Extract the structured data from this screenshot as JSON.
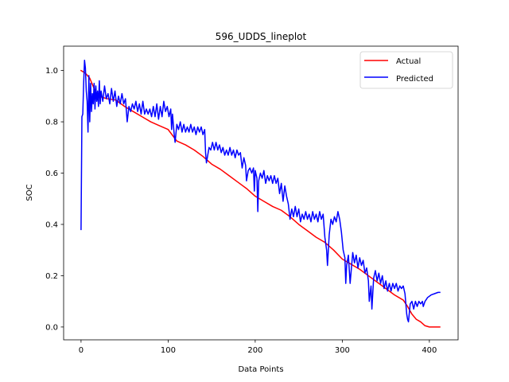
{
  "chart_data": {
    "type": "line",
    "title": "596_UDDS_lineplot",
    "xlabel": "Data Points",
    "ylabel": "SOC",
    "xlim": [
      -20,
      433
    ],
    "ylim": [
      -0.05,
      1.095
    ],
    "xticks": [
      0,
      100,
      200,
      300,
      400
    ],
    "yticks": [
      0.0,
      0.2,
      0.4,
      0.6,
      0.8,
      1.0
    ],
    "xtick_labels": [
      "0",
      "100",
      "200",
      "300",
      "400"
    ],
    "ytick_labels": [
      "0.0",
      "0.2",
      "0.4",
      "0.6",
      "0.8",
      "1.0"
    ],
    "grid": false,
    "legend": {
      "position": "top-right"
    },
    "series": [
      {
        "name": "Actual",
        "color": "#ff0000",
        "points": [
          [
            0,
            1.0
          ],
          [
            5,
            0.99
          ],
          [
            10,
            0.97
          ],
          [
            15,
            0.93
          ],
          [
            20,
            0.9
          ],
          [
            30,
            0.89
          ],
          [
            40,
            0.885
          ],
          [
            50,
            0.86
          ],
          [
            60,
            0.84
          ],
          [
            70,
            0.82
          ],
          [
            80,
            0.8
          ],
          [
            90,
            0.785
          ],
          [
            100,
            0.77
          ],
          [
            110,
            0.725
          ],
          [
            120,
            0.71
          ],
          [
            130,
            0.69
          ],
          [
            140,
            0.665
          ],
          [
            150,
            0.635
          ],
          [
            160,
            0.615
          ],
          [
            170,
            0.59
          ],
          [
            180,
            0.565
          ],
          [
            190,
            0.54
          ],
          [
            200,
            0.51
          ],
          [
            210,
            0.49
          ],
          [
            220,
            0.47
          ],
          [
            230,
            0.455
          ],
          [
            240,
            0.43
          ],
          [
            250,
            0.4
          ],
          [
            260,
            0.375
          ],
          [
            270,
            0.35
          ],
          [
            280,
            0.33
          ],
          [
            290,
            0.3
          ],
          [
            300,
            0.265
          ],
          [
            310,
            0.245
          ],
          [
            320,
            0.225
          ],
          [
            330,
            0.2
          ],
          [
            340,
            0.175
          ],
          [
            350,
            0.15
          ],
          [
            360,
            0.125
          ],
          [
            370,
            0.105
          ],
          [
            375,
            0.08
          ],
          [
            380,
            0.05
          ],
          [
            385,
            0.03
          ],
          [
            390,
            0.02
          ],
          [
            395,
            0.005
          ],
          [
            400,
            0.0
          ],
          [
            412,
            0.0
          ]
        ]
      },
      {
        "name": "Predicted",
        "color": "#0000ff",
        "points": [
          [
            0,
            0.38
          ],
          [
            1,
            0.82
          ],
          [
            2,
            0.83
          ],
          [
            3,
            0.95
          ],
          [
            4,
            1.04
          ],
          [
            5,
            1.01
          ],
          [
            6,
            0.92
          ],
          [
            7,
            0.88
          ],
          [
            8,
            0.76
          ],
          [
            9,
            0.98
          ],
          [
            10,
            0.8
          ],
          [
            11,
            0.95
          ],
          [
            12,
            0.84
          ],
          [
            13,
            0.91
          ],
          [
            14,
            0.87
          ],
          [
            15,
            0.95
          ],
          [
            16,
            0.85
          ],
          [
            17,
            0.94
          ],
          [
            18,
            0.88
          ],
          [
            19,
            0.92
          ],
          [
            20,
            0.86
          ],
          [
            21,
            0.96
          ],
          [
            22,
            0.87
          ],
          [
            23,
            0.92
          ],
          [
            25,
            0.88
          ],
          [
            27,
            0.94
          ],
          [
            29,
            0.89
          ],
          [
            31,
            0.91
          ],
          [
            33,
            0.87
          ],
          [
            35,
            0.93
          ],
          [
            37,
            0.88
          ],
          [
            39,
            0.92
          ],
          [
            41,
            0.86
          ],
          [
            43,
            0.9
          ],
          [
            45,
            0.87
          ],
          [
            47,
            0.91
          ],
          [
            49,
            0.87
          ],
          [
            51,
            0.89
          ],
          [
            53,
            0.8
          ],
          [
            55,
            0.86
          ],
          [
            57,
            0.84
          ],
          [
            59,
            0.87
          ],
          [
            61,
            0.85
          ],
          [
            63,
            0.88
          ],
          [
            65,
            0.84
          ],
          [
            67,
            0.87
          ],
          [
            69,
            0.83
          ],
          [
            71,
            0.88
          ],
          [
            73,
            0.83
          ],
          [
            75,
            0.85
          ],
          [
            77,
            0.83
          ],
          [
            79,
            0.85
          ],
          [
            81,
            0.82
          ],
          [
            83,
            0.86
          ],
          [
            85,
            0.82
          ],
          [
            87,
            0.87
          ],
          [
            89,
            0.81
          ],
          [
            91,
            0.86
          ],
          [
            93,
            0.82
          ],
          [
            95,
            0.88
          ],
          [
            97,
            0.84
          ],
          [
            99,
            0.86
          ],
          [
            101,
            0.82
          ],
          [
            103,
            0.85
          ],
          [
            104,
            0.77
          ],
          [
            105,
            0.83
          ],
          [
            107,
            0.75
          ],
          [
            108,
            0.72
          ],
          [
            110,
            0.79
          ],
          [
            112,
            0.77
          ],
          [
            114,
            0.8
          ],
          [
            116,
            0.76
          ],
          [
            118,
            0.79
          ],
          [
            120,
            0.76
          ],
          [
            122,
            0.78
          ],
          [
            124,
            0.76
          ],
          [
            126,
            0.79
          ],
          [
            128,
            0.76
          ],
          [
            130,
            0.78
          ],
          [
            132,
            0.75
          ],
          [
            134,
            0.78
          ],
          [
            136,
            0.76
          ],
          [
            138,
            0.78
          ],
          [
            140,
            0.75
          ],
          [
            142,
            0.77
          ],
          [
            143,
            0.68
          ],
          [
            144,
            0.64
          ],
          [
            145,
            0.66
          ],
          [
            147,
            0.7
          ],
          [
            149,
            0.69
          ],
          [
            151,
            0.72
          ],
          [
            153,
            0.69
          ],
          [
            155,
            0.72
          ],
          [
            157,
            0.69
          ],
          [
            159,
            0.71
          ],
          [
            161,
            0.68
          ],
          [
            163,
            0.7
          ],
          [
            165,
            0.67
          ],
          [
            167,
            0.69
          ],
          [
            169,
            0.67
          ],
          [
            171,
            0.7
          ],
          [
            173,
            0.67
          ],
          [
            175,
            0.69
          ],
          [
            177,
            0.66
          ],
          [
            179,
            0.69
          ],
          [
            181,
            0.67
          ],
          [
            183,
            0.68
          ],
          [
            185,
            0.62
          ],
          [
            187,
            0.66
          ],
          [
            189,
            0.63
          ],
          [
            190,
            0.57
          ],
          [
            192,
            0.61
          ],
          [
            194,
            0.62
          ],
          [
            196,
            0.6
          ],
          [
            198,
            0.62
          ],
          [
            199,
            0.53
          ],
          [
            200,
            0.61
          ],
          [
            202,
            0.58
          ],
          [
            203,
            0.45
          ],
          [
            204,
            0.57
          ],
          [
            206,
            0.6
          ],
          [
            208,
            0.58
          ],
          [
            210,
            0.61
          ],
          [
            212,
            0.56
          ],
          [
            214,
            0.59
          ],
          [
            216,
            0.57
          ],
          [
            218,
            0.59
          ],
          [
            220,
            0.56
          ],
          [
            222,
            0.59
          ],
          [
            224,
            0.56
          ],
          [
            226,
            0.58
          ],
          [
            228,
            0.52
          ],
          [
            230,
            0.56
          ],
          [
            232,
            0.49
          ],
          [
            234,
            0.55
          ],
          [
            236,
            0.51
          ],
          [
            238,
            0.48
          ],
          [
            240,
            0.42
          ],
          [
            242,
            0.46
          ],
          [
            244,
            0.43
          ],
          [
            246,
            0.47
          ],
          [
            248,
            0.43
          ],
          [
            250,
            0.46
          ],
          [
            252,
            0.41
          ],
          [
            254,
            0.44
          ],
          [
            256,
            0.42
          ],
          [
            258,
            0.45
          ],
          [
            260,
            0.42
          ],
          [
            262,
            0.44
          ],
          [
            264,
            0.41
          ],
          [
            266,
            0.45
          ],
          [
            268,
            0.42
          ],
          [
            270,
            0.44
          ],
          [
            272,
            0.41
          ],
          [
            274,
            0.45
          ],
          [
            276,
            0.42
          ],
          [
            278,
            0.44
          ],
          [
            280,
            0.35
          ],
          [
            282,
            0.3
          ],
          [
            283,
            0.24
          ],
          [
            285,
            0.36
          ],
          [
            287,
            0.42
          ],
          [
            289,
            0.4
          ],
          [
            291,
            0.43
          ],
          [
            293,
            0.41
          ],
          [
            295,
            0.45
          ],
          [
            297,
            0.42
          ],
          [
            299,
            0.37
          ],
          [
            301,
            0.3
          ],
          [
            303,
            0.27
          ],
          [
            304,
            0.17
          ],
          [
            305,
            0.24
          ],
          [
            307,
            0.28
          ],
          [
            309,
            0.17
          ],
          [
            310,
            0.21
          ],
          [
            312,
            0.29
          ],
          [
            314,
            0.25
          ],
          [
            316,
            0.28
          ],
          [
            318,
            0.23
          ],
          [
            320,
            0.27
          ],
          [
            322,
            0.24
          ],
          [
            324,
            0.26
          ],
          [
            326,
            0.21
          ],
          [
            328,
            0.23
          ],
          [
            330,
            0.18
          ],
          [
            331,
            0.1
          ],
          [
            333,
            0.16
          ],
          [
            334,
            0.07
          ],
          [
            336,
            0.19
          ],
          [
            338,
            0.22
          ],
          [
            340,
            0.18
          ],
          [
            342,
            0.21
          ],
          [
            344,
            0.17
          ],
          [
            346,
            0.2
          ],
          [
            348,
            0.15
          ],
          [
            350,
            0.18
          ],
          [
            352,
            0.14
          ],
          [
            354,
            0.17
          ],
          [
            356,
            0.14
          ],
          [
            358,
            0.17
          ],
          [
            360,
            0.15
          ],
          [
            362,
            0.17
          ],
          [
            364,
            0.14
          ],
          [
            366,
            0.16
          ],
          [
            368,
            0.15
          ],
          [
            370,
            0.16
          ],
          [
            372,
            0.13
          ],
          [
            374,
            0.05
          ],
          [
            375,
            0.03
          ],
          [
            376,
            0.02
          ],
          [
            378,
            0.09
          ],
          [
            380,
            0.1
          ],
          [
            382,
            0.07
          ],
          [
            384,
            0.1
          ],
          [
            386,
            0.08
          ],
          [
            388,
            0.1
          ],
          [
            390,
            0.09
          ],
          [
            392,
            0.1
          ],
          [
            393,
            0.08
          ],
          [
            395,
            0.1
          ],
          [
            398,
            0.115
          ],
          [
            402,
            0.125
          ],
          [
            406,
            0.13
          ],
          [
            410,
            0.135
          ],
          [
            412,
            0.135
          ]
        ]
      }
    ]
  }
}
